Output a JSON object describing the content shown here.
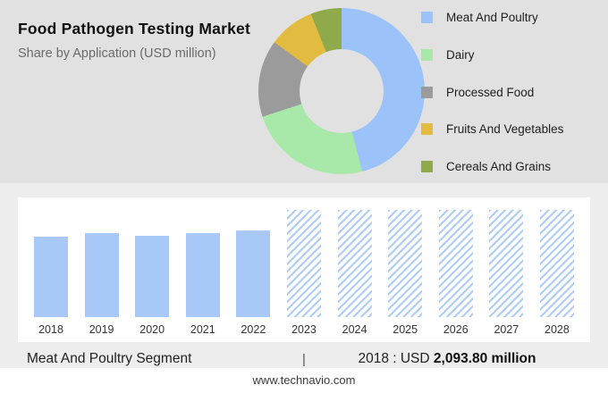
{
  "header": {
    "title": "Food Pathogen Testing Market",
    "subtitle": "Share by Application (USD million)"
  },
  "chart_data": [
    {
      "type": "pie",
      "donut": true,
      "title": "Share by Application (USD million)",
      "legend_position": "right",
      "slices": [
        {
          "label": "Meat And Poultry",
          "value": 46,
          "color": "#9cc3f9"
        },
        {
          "label": "Dairy",
          "value": 24,
          "color": "#a8e8a8"
        },
        {
          "label": "Processed Food",
          "value": 15,
          "color": "#9b9b9b"
        },
        {
          "label": "Fruits And Vegetables",
          "value": 9,
          "color": "#e2bb41"
        },
        {
          "label": "Cereals And Grains",
          "value": 6,
          "color": "#8fa94b"
        }
      ]
    },
    {
      "type": "bar",
      "categories": [
        "2018",
        "2019",
        "2020",
        "2021",
        "2022",
        "2023",
        "2024",
        "2025",
        "2026",
        "2027",
        "2028"
      ],
      "values": [
        2093.8,
        2200,
        2130,
        2190,
        2270,
        null,
        null,
        null,
        null,
        null,
        null
      ],
      "forecast_from": "2023",
      "note": "2023-2028 shown as full-height hatched forecast bars",
      "ylim": [
        0,
        2800
      ],
      "xlabel": "",
      "ylabel": "",
      "bar_color": "#a8c9f8",
      "hatched_color": "#aecdf8"
    }
  ],
  "summary": {
    "segment_label": "Meat And Poultry Segment",
    "separator": "|",
    "stat_prefix": "2018 : USD",
    "stat_value": "2,093.80 million"
  },
  "footer": {
    "url": "www.technavio.com"
  }
}
